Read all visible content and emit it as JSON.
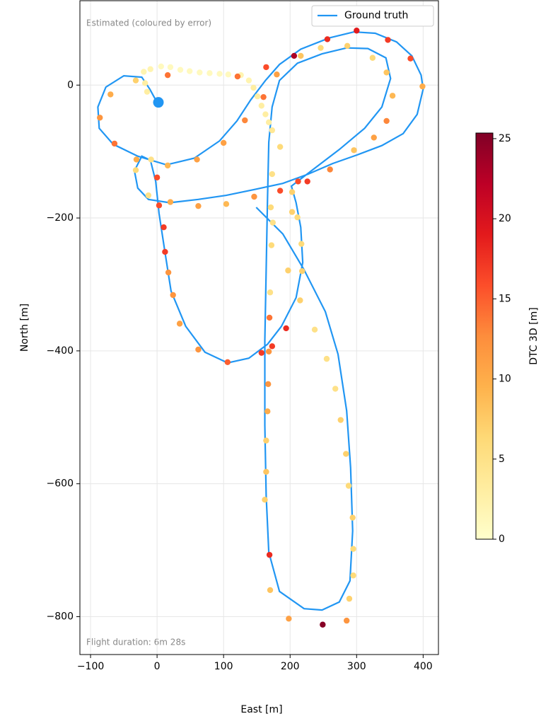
{
  "chart_data": {
    "type": "trajectory",
    "xlabel": "East [m]",
    "ylabel": "North [m]",
    "annotations": [
      "Estimated (coloured by error)",
      "Flight duration: 6m 28s"
    ],
    "xlim": [
      -116,
      423
    ],
    "ylim": [
      -857,
      127
    ],
    "xticks": [
      {
        "value": -100,
        "label": "−100"
      },
      0,
      100,
      200,
      300,
      400
    ],
    "yticks": [
      {
        "value": -800,
        "label": "−800"
      },
      {
        "value": -600,
        "label": "−600"
      },
      {
        "value": -400,
        "label": "−400"
      },
      {
        "value": -200,
        "label": "−200"
      },
      0
    ],
    "grid": true,
    "legend": "upper right",
    "series": [
      {
        "name": "Ground truth",
        "color": "#2196f3",
        "x": [
          0,
          -11,
          -23,
          -50,
          -77,
          -89,
          -87,
          -66,
          -29,
          14,
          56,
          94,
          120,
          141,
          163,
          184,
          216,
          259,
          296,
          328,
          360,
          383,
          397,
          400,
          391,
          370,
          338,
          301,
          264,
          227,
          189,
          147,
          104,
          62,
          19,
          -13,
          -29,
          -34,
          -23,
          -10,
          -2,
          3,
          11,
          21,
          43,
          72,
          106,
          138,
          166,
          187,
          209,
          219,
          216,
          209,
          202,
          232,
          274,
          312,
          338,
          351,
          344,
          317,
          285,
          248,
          211,
          184,
          173,
          168,
          166,
          164,
          162,
          162,
          164,
          168,
          184,
          221,
          248,
          274,
          290,
          294,
          291,
          285,
          272,
          253,
          221,
          189,
          149
        ],
        "y": [
          -26,
          -6,
          12,
          14,
          -3,
          -33,
          -65,
          -89,
          -107,
          -120,
          -110,
          -84,
          -54,
          -22,
          7,
          31,
          54,
          71,
          80,
          78,
          65,
          44,
          15,
          -6,
          -44,
          -73,
          -91,
          -105,
          -118,
          -134,
          -148,
          -157,
          -166,
          -172,
          -177,
          -172,
          -155,
          -129,
          -107,
          -113,
          -145,
          -193,
          -246,
          -310,
          -363,
          -402,
          -418,
          -411,
          -390,
          -363,
          -320,
          -267,
          -214,
          -177,
          -152,
          -129,
          -97,
          -65,
          -33,
          10,
          41,
          55,
          56,
          47,
          33,
          7,
          -33,
          -86,
          -171,
          -278,
          -384,
          -512,
          -618,
          -703,
          -762,
          -788,
          -790,
          -778,
          -746,
          -671,
          -576,
          -490,
          -405,
          -341,
          -278,
          -224,
          -184
        ]
      }
    ],
    "points": {
      "x": [
        -20,
        -10,
        6,
        20,
        35,
        49,
        64,
        79,
        94,
        107,
        126,
        138,
        145,
        151,
        157,
        163,
        168,
        173,
        -18,
        -15,
        -32,
        16,
        121,
        164,
        206,
        256,
        300,
        347,
        381,
        399,
        354,
        345,
        326,
        296,
        260,
        226,
        203,
        185,
        146,
        104,
        62,
        20,
        -13,
        -32,
        -31,
        -9,
        -70,
        -86,
        -64,
        16,
        60,
        100,
        132,
        160,
        180,
        216,
        246,
        286,
        324,
        345,
        0,
        3,
        10,
        12,
        17,
        24,
        34,
        62,
        106,
        157,
        173,
        194,
        215,
        218,
        217,
        211,
        173,
        171,
        174,
        172,
        170,
        169,
        168,
        167,
        166,
        164,
        164,
        162,
        169,
        170,
        198,
        249,
        285,
        289,
        295,
        295,
        294,
        288,
        284,
        276,
        268,
        255,
        237,
        197,
        203,
        185,
        212
      ],
      "y": [
        20,
        24,
        28,
        27,
        23,
        21,
        19,
        18,
        17,
        16,
        15,
        7,
        -4,
        -17,
        -31,
        -44,
        -56,
        -68,
        3,
        -10,
        7,
        15,
        13,
        27,
        44,
        69,
        82,
        68,
        40,
        -2,
        -16,
        -54,
        -79,
        -98,
        -127,
        -145,
        -161,
        -159,
        -168,
        -179,
        -182,
        -176,
        -166,
        -128,
        -112,
        -112,
        -14,
        -49,
        -88,
        -121,
        -112,
        -87,
        -53,
        -18,
        16,
        44,
        56,
        59,
        41,
        19,
        -139,
        -181,
        -214,
        -251,
        -282,
        -316,
        -359,
        -398,
        -417,
        -403,
        -393,
        -366,
        -324,
        -280,
        -239,
        -199,
        -134,
        -184,
        -207,
        -241,
        -312,
        -350,
        -401,
        -450,
        -491,
        -535,
        -582,
        -624,
        -707,
        -760,
        -803,
        -812,
        -806,
        -773,
        -738,
        -698,
        -651,
        -603,
        -555,
        -504,
        -457,
        -412,
        -368,
        -279,
        -191,
        -93,
        -145
      ],
      "error": [
        2,
        2,
        1,
        1,
        1,
        1,
        1,
        1,
        1,
        1,
        2,
        2,
        3,
        3,
        3,
        3,
        3,
        4,
        3,
        3,
        7,
        14,
        14,
        16,
        23,
        18,
        19,
        17,
        16,
        10,
        9,
        13,
        11,
        8,
        13,
        17,
        7,
        16,
        12,
        9,
        11,
        10,
        5,
        6,
        10,
        5,
        10,
        12,
        14,
        9,
        11,
        11,
        13,
        14,
        11,
        8,
        6,
        7,
        6,
        8,
        16,
        16,
        17,
        17,
        12,
        12,
        11,
        12,
        15,
        17,
        17,
        18,
        7,
        7,
        6,
        6,
        5,
        6,
        5,
        6,
        5,
        14,
        12,
        12,
        10,
        7,
        8,
        7,
        18,
        8,
        11,
        25,
        12,
        7,
        6,
        6,
        7,
        6,
        7,
        7,
        5,
        5,
        5,
        7,
        7,
        6,
        16
      ]
    },
    "start": {
      "x": 2,
      "y": -26,
      "color": "#2196f3"
    },
    "colorbar": {
      "label": "DTC 3D [m]",
      "colormap": "YlOrRd",
      "lim": [
        0,
        25.35
      ],
      "ticks": [
        0,
        5,
        10,
        15,
        20,
        25
      ]
    }
  }
}
